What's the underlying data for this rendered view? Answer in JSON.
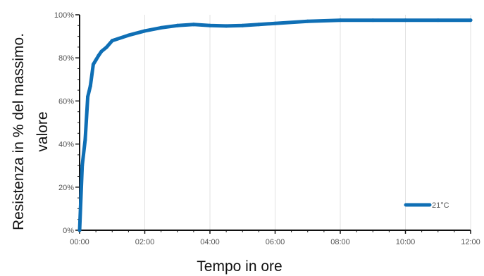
{
  "chart_data": {
    "type": "line",
    "title": "",
    "xlabel": "Tempo in ore",
    "ylabel_lines": [
      "Resistenza in % del massimo.",
      "valore"
    ],
    "x_tick_labels": [
      "00:00",
      "02:00",
      "04:00",
      "06:00",
      "08:00",
      "10:00",
      "12:00"
    ],
    "y_tick_labels": [
      "0%",
      "20%",
      "40%",
      "60%",
      "80%",
      "100%"
    ],
    "xlim": [
      0,
      12
    ],
    "ylim": [
      0,
      100
    ],
    "grid": {
      "x": true,
      "y": false
    },
    "legend_position": "bottom-right",
    "series": [
      {
        "name": "21°C",
        "color": "#0f6fb5",
        "x": [
          0,
          0.08,
          0.17,
          0.25,
          0.33,
          0.42,
          0.5,
          0.58,
          0.67,
          0.83,
          1.0,
          1.5,
          2.0,
          2.5,
          3.0,
          3.5,
          4.0,
          4.5,
          5.0,
          5.5,
          6.0,
          7.0,
          8.0,
          9.0,
          10.0,
          11.0,
          12.0
        ],
        "y": [
          0,
          30,
          42,
          62,
          67,
          77,
          79,
          81,
          83,
          85,
          88,
          90.5,
          92.5,
          94,
          95,
          95.5,
          95,
          94.8,
          95,
          95.5,
          96,
          97,
          97.5,
          97.5,
          97.5,
          97.5,
          97.5
        ]
      }
    ]
  }
}
